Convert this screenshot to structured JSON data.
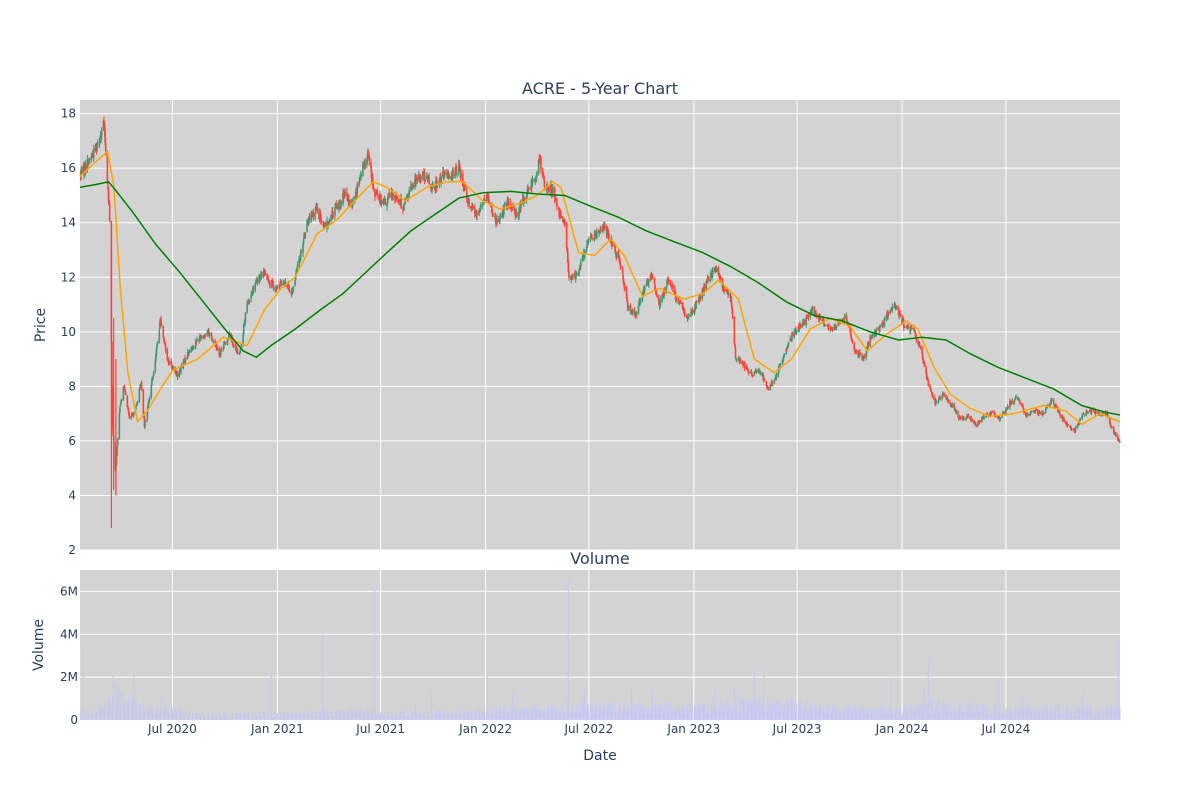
{
  "chart_data": [
    {
      "type": "candlestick",
      "title": "ACRE - 5-Year Chart",
      "ylabel": "Price",
      "ylim": [
        2,
        18.5
      ],
      "yticks": [
        2,
        4,
        6,
        8,
        10,
        12,
        14,
        16,
        18
      ],
      "xlim": [
        "2020-01-21",
        "2025-01-17"
      ],
      "grid": true,
      "colors": {
        "up": "#3d9970",
        "down": "#ff4136",
        "ma_short": "#ffa500",
        "ma_long": "#008000",
        "plot_bg": "#d3d3d3"
      },
      "close_path": [
        [
          "2020-01-22",
          15.8
        ],
        [
          "2020-02-03",
          16.2
        ],
        [
          "2020-02-14",
          16.6
        ],
        [
          "2020-02-24",
          17.1
        ],
        [
          "2020-03-03",
          17.6
        ],
        [
          "2020-03-09",
          15.5
        ],
        [
          "2020-03-13",
          14.2
        ],
        [
          "2020-03-18",
          6.5
        ],
        [
          "2020-03-23",
          4.9
        ],
        [
          "2020-03-31",
          7.3
        ],
        [
          "2020-04-07",
          8.0
        ],
        [
          "2020-04-17",
          6.8
        ],
        [
          "2020-04-28",
          7.2
        ],
        [
          "2020-05-07",
          8.1
        ],
        [
          "2020-05-13",
          6.6
        ],
        [
          "2020-05-22",
          7.6
        ],
        [
          "2020-06-03",
          9.3
        ],
        [
          "2020-06-10",
          10.5
        ],
        [
          "2020-06-22",
          9.0
        ],
        [
          "2020-07-10",
          8.4
        ],
        [
          "2020-07-28",
          9.2
        ],
        [
          "2020-08-14",
          9.7
        ],
        [
          "2020-09-03",
          10.0
        ],
        [
          "2020-09-22",
          9.2
        ],
        [
          "2020-10-09",
          9.9
        ],
        [
          "2020-10-26",
          9.1
        ],
        [
          "2020-11-09",
          11.0
        ],
        [
          "2020-11-25",
          11.8
        ],
        [
          "2020-12-09",
          12.2
        ],
        [
          "2020-12-28",
          11.5
        ],
        [
          "2021-01-12",
          11.9
        ],
        [
          "2021-01-26",
          11.4
        ],
        [
          "2021-02-10",
          12.8
        ],
        [
          "2021-02-22",
          14.0
        ],
        [
          "2021-03-10",
          14.5
        ],
        [
          "2021-03-26",
          13.8
        ],
        [
          "2021-04-12",
          14.5
        ],
        [
          "2021-04-28",
          15.0
        ],
        [
          "2021-05-12",
          14.6
        ],
        [
          "2021-05-28",
          15.8
        ],
        [
          "2021-06-09",
          16.6
        ],
        [
          "2021-06-18",
          15.2
        ],
        [
          "2021-07-06",
          14.7
        ],
        [
          "2021-07-23",
          15.1
        ],
        [
          "2021-08-09",
          14.6
        ],
        [
          "2021-08-26",
          15.4
        ],
        [
          "2021-09-13",
          15.8
        ],
        [
          "2021-09-30",
          15.3
        ],
        [
          "2021-10-18",
          15.7
        ],
        [
          "2021-11-04",
          15.8
        ],
        [
          "2021-11-15",
          16.0
        ],
        [
          "2021-11-30",
          14.9
        ],
        [
          "2021-12-15",
          14.3
        ],
        [
          "2022-01-03",
          15.0
        ],
        [
          "2022-01-20",
          14.0
        ],
        [
          "2022-02-07",
          14.7
        ],
        [
          "2022-02-25",
          14.3
        ],
        [
          "2022-03-14",
          15.1
        ],
        [
          "2022-03-28",
          15.6
        ],
        [
          "2022-04-06",
          16.3
        ],
        [
          "2022-04-14",
          15.4
        ],
        [
          "2022-04-28",
          15.2
        ],
        [
          "2022-05-09",
          14.4
        ],
        [
          "2022-05-20",
          14.0
        ],
        [
          "2022-05-27",
          11.9
        ],
        [
          "2022-06-10",
          12.1
        ],
        [
          "2022-06-27",
          13.2
        ],
        [
          "2022-07-13",
          13.6
        ],
        [
          "2022-07-27",
          13.9
        ],
        [
          "2022-08-11",
          13.2
        ],
        [
          "2022-08-26",
          12.4
        ],
        [
          "2022-09-07",
          10.9
        ],
        [
          "2022-09-21",
          10.6
        ],
        [
          "2022-10-05",
          11.6
        ],
        [
          "2022-10-19",
          12.1
        ],
        [
          "2022-11-02",
          11.0
        ],
        [
          "2022-11-16",
          11.9
        ],
        [
          "2022-12-02",
          11.2
        ],
        [
          "2022-12-21",
          10.5
        ],
        [
          "2023-01-06",
          11.0
        ],
        [
          "2023-01-23",
          11.8
        ],
        [
          "2023-02-07",
          12.4
        ],
        [
          "2023-02-22",
          11.6
        ],
        [
          "2023-03-07",
          11.3
        ],
        [
          "2023-03-15",
          9.1
        ],
        [
          "2023-03-29",
          8.8
        ],
        [
          "2023-04-14",
          8.4
        ],
        [
          "2023-04-28",
          8.6
        ],
        [
          "2023-05-10",
          7.9
        ],
        [
          "2023-05-24",
          8.3
        ],
        [
          "2023-06-12",
          9.4
        ],
        [
          "2023-06-27",
          10.1
        ],
        [
          "2023-07-12",
          10.3
        ],
        [
          "2023-07-27",
          10.8
        ],
        [
          "2023-08-11",
          10.5
        ],
        [
          "2023-08-25",
          10.1
        ],
        [
          "2023-09-11",
          10.3
        ],
        [
          "2023-09-25",
          10.5
        ],
        [
          "2023-10-10",
          9.3
        ],
        [
          "2023-10-25",
          9.0
        ],
        [
          "2023-11-08",
          9.9
        ],
        [
          "2023-11-22",
          10.1
        ],
        [
          "2023-12-06",
          10.6
        ],
        [
          "2023-12-20",
          11.0
        ],
        [
          "2024-01-05",
          10.2
        ],
        [
          "2024-01-22",
          10.0
        ],
        [
          "2024-02-02",
          9.4
        ],
        [
          "2024-02-16",
          8.1
        ],
        [
          "2024-02-28",
          7.4
        ],
        [
          "2024-03-14",
          7.7
        ],
        [
          "2024-03-28",
          7.3
        ],
        [
          "2024-04-12",
          6.8
        ],
        [
          "2024-04-26",
          6.9
        ],
        [
          "2024-05-10",
          6.6
        ],
        [
          "2024-05-24",
          6.9
        ],
        [
          "2024-06-07",
          7.0
        ],
        [
          "2024-06-21",
          6.8
        ],
        [
          "2024-07-08",
          7.4
        ],
        [
          "2024-07-23",
          7.6
        ],
        [
          "2024-08-06",
          6.9
        ],
        [
          "2024-08-20",
          7.1
        ],
        [
          "2024-09-04",
          7.0
        ],
        [
          "2024-09-18",
          7.5
        ],
        [
          "2024-10-02",
          7.0
        ],
        [
          "2024-10-16",
          6.6
        ],
        [
          "2024-10-30",
          6.4
        ],
        [
          "2024-11-13",
          7.0
        ],
        [
          "2024-11-27",
          7.1
        ],
        [
          "2024-12-11",
          7.0
        ],
        [
          "2024-12-24",
          7.0
        ],
        [
          "2025-01-06",
          6.3
        ],
        [
          "2025-01-17",
          6.0
        ]
      ],
      "ma_short": [
        [
          "2020-01-21",
          15.7
        ],
        [
          "2020-02-21",
          16.3
        ],
        [
          "2020-03-09",
          16.6
        ],
        [
          "2020-03-20",
          15.4
        ],
        [
          "2020-04-01",
          11.5
        ],
        [
          "2020-04-14",
          8.5
        ],
        [
          "2020-05-01",
          6.7
        ],
        [
          "2020-05-18",
          7.1
        ],
        [
          "2020-06-10",
          7.9
        ],
        [
          "2020-07-02",
          8.6
        ],
        [
          "2020-08-14",
          9.0
        ],
        [
          "2020-09-28",
          9.8
        ],
        [
          "2020-11-09",
          9.5
        ],
        [
          "2020-12-09",
          10.8
        ],
        [
          "2021-01-08",
          11.6
        ],
        [
          "2021-02-01",
          12.0
        ],
        [
          "2021-03-12",
          13.6
        ],
        [
          "2021-04-15",
          14.1
        ],
        [
          "2021-05-21",
          14.9
        ],
        [
          "2021-06-18",
          15.5
        ],
        [
          "2021-07-12",
          15.3
        ],
        [
          "2021-08-13",
          14.8
        ],
        [
          "2021-09-20",
          15.3
        ],
        [
          "2021-10-25",
          15.5
        ],
        [
          "2021-11-22",
          15.5
        ],
        [
          "2021-12-27",
          14.8
        ],
        [
          "2022-01-27",
          14.5
        ],
        [
          "2022-03-01",
          14.7
        ],
        [
          "2022-04-01",
          15.0
        ],
        [
          "2022-04-28",
          15.5
        ],
        [
          "2022-05-13",
          15.3
        ],
        [
          "2022-06-13",
          12.9
        ],
        [
          "2022-07-11",
          12.8
        ],
        [
          "2022-08-08",
          13.4
        ],
        [
          "2022-09-01",
          12.8
        ],
        [
          "2022-10-03",
          11.3
        ],
        [
          "2022-11-01",
          11.6
        ],
        [
          "2022-12-15",
          11.2
        ],
        [
          "2023-01-17",
          11.4
        ],
        [
          "2023-02-14",
          11.9
        ],
        [
          "2023-03-20",
          11.2
        ],
        [
          "2023-04-17",
          9.0
        ],
        [
          "2023-05-22",
          8.5
        ],
        [
          "2023-06-21",
          9.0
        ],
        [
          "2023-07-24",
          10.1
        ],
        [
          "2023-08-28",
          10.5
        ],
        [
          "2023-10-02",
          10.2
        ],
        [
          "2023-11-01",
          9.3
        ],
        [
          "2023-12-04",
          9.9
        ],
        [
          "2024-01-08",
          10.4
        ],
        [
          "2024-01-29",
          10.1
        ],
        [
          "2024-02-26",
          8.7
        ],
        [
          "2024-03-26",
          7.7
        ],
        [
          "2024-04-29",
          7.2
        ],
        [
          "2024-06-03",
          6.9
        ],
        [
          "2024-07-15",
          7.0
        ],
        [
          "2024-09-05",
          7.3
        ],
        [
          "2024-10-14",
          7.1
        ],
        [
          "2024-11-11",
          6.6
        ],
        [
          "2024-12-13",
          7.0
        ],
        [
          "2025-01-17",
          6.7
        ]
      ],
      "ma_long": [
        [
          "2020-01-21",
          15.3
        ],
        [
          "2020-02-18",
          15.4
        ],
        [
          "2020-03-11",
          15.5
        ],
        [
          "2020-03-23",
          15.2
        ],
        [
          "2020-04-22",
          14.4
        ],
        [
          "2020-06-02",
          13.2
        ],
        [
          "2020-07-13",
          12.2
        ],
        [
          "2020-08-24",
          11.1
        ],
        [
          "2020-10-01",
          10.1
        ],
        [
          "2020-11-02",
          9.3
        ],
        [
          "2020-11-25",
          9.07
        ],
        [
          "2020-12-21",
          9.5
        ],
        [
          "2021-02-01",
          10.1
        ],
        [
          "2021-03-17",
          10.8
        ],
        [
          "2021-04-26",
          11.4
        ],
        [
          "2021-06-01",
          12.1
        ],
        [
          "2021-07-12",
          12.9
        ],
        [
          "2021-08-23",
          13.7
        ],
        [
          "2021-10-04",
          14.3
        ],
        [
          "2021-11-15",
          14.9
        ],
        [
          "2021-12-27",
          15.1
        ],
        [
          "2022-02-14",
          15.15
        ],
        [
          "2022-04-04",
          15.05
        ],
        [
          "2022-05-20",
          15.0
        ],
        [
          "2022-07-05",
          14.6
        ],
        [
          "2022-08-22",
          14.2
        ],
        [
          "2022-10-10",
          13.7
        ],
        [
          "2022-11-28",
          13.3
        ],
        [
          "2023-01-17",
          12.9
        ],
        [
          "2023-03-06",
          12.4
        ],
        [
          "2023-04-24",
          11.8
        ],
        [
          "2023-06-12",
          11.1
        ],
        [
          "2023-07-31",
          10.6
        ],
        [
          "2023-09-18",
          10.4
        ],
        [
          "2023-11-06",
          10.0
        ],
        [
          "2023-12-26",
          9.7
        ],
        [
          "2024-02-05",
          9.8
        ],
        [
          "2024-03-18",
          9.7
        ],
        [
          "2024-04-29",
          9.2
        ],
        [
          "2024-06-17",
          8.7
        ],
        [
          "2024-08-05",
          8.3
        ],
        [
          "2024-09-23",
          7.9
        ],
        [
          "2024-11-11",
          7.3
        ],
        [
          "2024-12-23",
          7.05
        ],
        [
          "2025-01-17",
          6.95
        ]
      ]
    },
    {
      "type": "bar",
      "title": "Volume",
      "xlabel": "Date",
      "ylabel": "Volume",
      "ylim": [
        0,
        7000000
      ],
      "yticks": [
        0,
        2000000,
        4000000,
        6000000
      ],
      "ytick_labels": [
        "0",
        "2M",
        "4M",
        "6M"
      ],
      "xticks": [
        "2020-07-01",
        "2021-01-01",
        "2021-07-01",
        "2022-01-01",
        "2022-07-01",
        "2023-01-01",
        "2023-07-01",
        "2024-01-01",
        "2024-07-01"
      ],
      "xtick_labels": [
        "Jul 2020",
        "Jan 2021",
        "Jul 2021",
        "Jan 2022",
        "Jul 2022",
        "Jan 2023",
        "Jul 2023",
        "Jan 2024",
        "Jul 2024"
      ],
      "bar_color": "#c8c8f0",
      "baseline": [
        [
          "2020-01-21",
          300000
        ],
        [
          "2020-02-24",
          400000
        ],
        [
          "2020-03-23",
          1200000
        ],
        [
          "2020-04-27",
          700000
        ],
        [
          "2020-06-08",
          500000
        ],
        [
          "2020-09-01",
          250000
        ],
        [
          "2021-01-01",
          300000
        ],
        [
          "2021-05-03",
          400000
        ],
        [
          "2021-09-01",
          300000
        ],
        [
          "2022-01-03",
          400000
        ],
        [
          "2022-05-02",
          600000
        ],
        [
          "2022-09-01",
          600000
        ],
        [
          "2023-01-03",
          600000
        ],
        [
          "2023-05-01",
          800000
        ],
        [
          "2023-09-01",
          500000
        ],
        [
          "2024-01-02",
          500000
        ],
        [
          "2024-03-01",
          700000
        ],
        [
          "2024-07-01",
          500000
        ],
        [
          "2025-01-17",
          500000
        ]
      ],
      "spikes": [
        [
          "2020-01-27",
          3300000
        ],
        [
          "2020-03-11",
          1200000
        ],
        [
          "2020-03-19",
          2100000
        ],
        [
          "2020-03-30",
          1600000
        ],
        [
          "2020-04-24",
          2200000
        ],
        [
          "2020-06-11",
          1000000
        ],
        [
          "2020-12-21",
          2100000
        ],
        [
          "2021-03-22",
          4000000
        ],
        [
          "2021-06-21",
          6200000
        ],
        [
          "2021-08-31",
          800000
        ],
        [
          "2021-09-28",
          1400000
        ],
        [
          "2022-01-04",
          2200000
        ],
        [
          "2022-02-17",
          1300000
        ],
        [
          "2022-05-26",
          6500000
        ],
        [
          "2022-06-23",
          1500000
        ],
        [
          "2022-09-14",
          1600000
        ],
        [
          "2022-10-20",
          1400000
        ],
        [
          "2022-12-28",
          1300000
        ],
        [
          "2023-02-07",
          1400000
        ],
        [
          "2023-03-13",
          1500000
        ],
        [
          "2023-04-17",
          2400000
        ],
        [
          "2023-05-04",
          2300000
        ],
        [
          "2023-06-20",
          1000000
        ],
        [
          "2023-12-13",
          1900000
        ],
        [
          "2024-02-08",
          1500000
        ],
        [
          "2024-02-16",
          2900000
        ],
        [
          "2024-03-14",
          1200000
        ],
        [
          "2024-06-18",
          1800000
        ],
        [
          "2024-07-30",
          1200000
        ],
        [
          "2024-11-13",
          1300000
        ],
        [
          "2025-01-14",
          3700000
        ]
      ]
    }
  ]
}
